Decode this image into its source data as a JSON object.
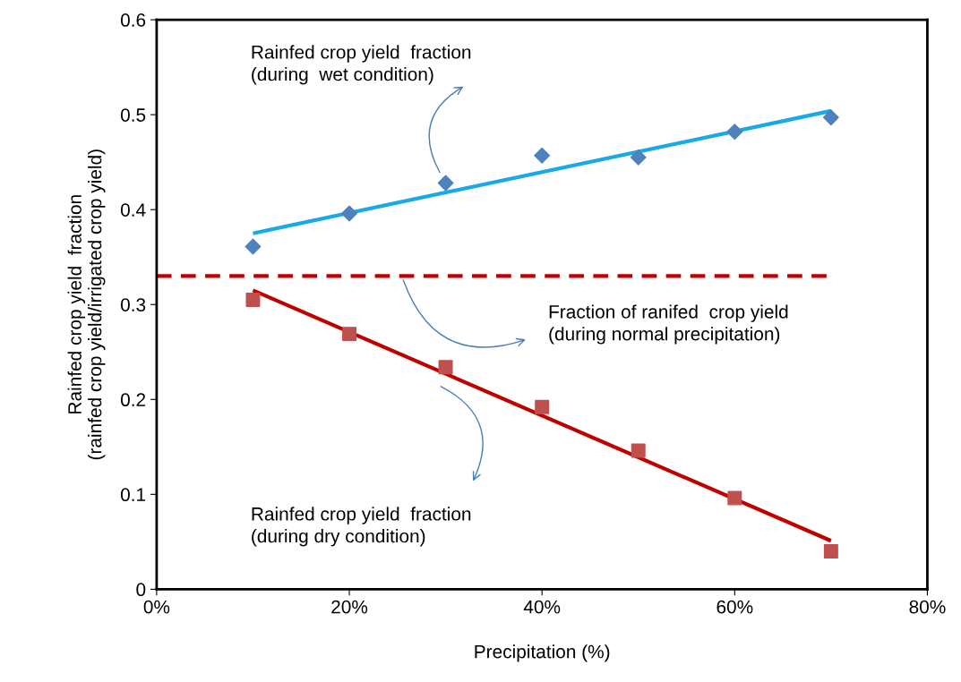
{
  "chart_data": {
    "type": "scatter",
    "xlabel": "Precipitation (%)",
    "ylabel": "Rainfed crop yield  fraction\n(rainfed crop yield/irrigated crop yield)",
    "xlim": [
      0,
      80
    ],
    "ylim": [
      0,
      0.6
    ],
    "xticks": [
      {
        "value": 0,
        "label": "0%"
      },
      {
        "value": 20,
        "label": "20%"
      },
      {
        "value": 40,
        "label": "40%"
      },
      {
        "value": 60,
        "label": "60%"
      },
      {
        "value": 80,
        "label": "80%"
      }
    ],
    "yticks": [
      0,
      0.1,
      0.2,
      0.3,
      0.4,
      0.5,
      0.6
    ],
    "grid": false,
    "legend": false,
    "series": [
      {
        "marker": "diamond",
        "color": "#4f81bd",
        "x": [
          10,
          20,
          30,
          40,
          50,
          60,
          70
        ],
        "values": [
          0.361,
          0.396,
          0.428,
          0.457,
          0.455,
          0.482,
          0.497
        ]
      },
      {
        "type": "line",
        "marker": "none",
        "line_style": "solid",
        "color": "#17a9e8",
        "x": [
          10,
          70
        ],
        "values": [
          0.375,
          0.504
        ]
      },
      {
        "marker": "square",
        "color": "#c0504d",
        "x": [
          10,
          20,
          30,
          40,
          50,
          60,
          70
        ],
        "values": [
          0.305,
          0.269,
          0.234,
          0.192,
          0.146,
          0.096,
          0.04
        ]
      },
      {
        "type": "line",
        "marker": "none",
        "line_style": "solid",
        "color": "#c00000",
        "x": [
          10,
          70
        ],
        "values": [
          0.315,
          0.051
        ]
      },
      {
        "type": "line",
        "marker": "none",
        "line_style": "dashed",
        "color": "#c00000",
        "x": [
          0,
          70
        ],
        "values": [
          0.33,
          0.33
        ]
      }
    ],
    "annotations": [
      "Rainfed crop yield  fraction\n(during  wet condition)",
      "Fraction of ranifed  crop yield\n(during normal precipitation)",
      "Rainfed crop yield  fraction\n(during dry condition)"
    ]
  }
}
